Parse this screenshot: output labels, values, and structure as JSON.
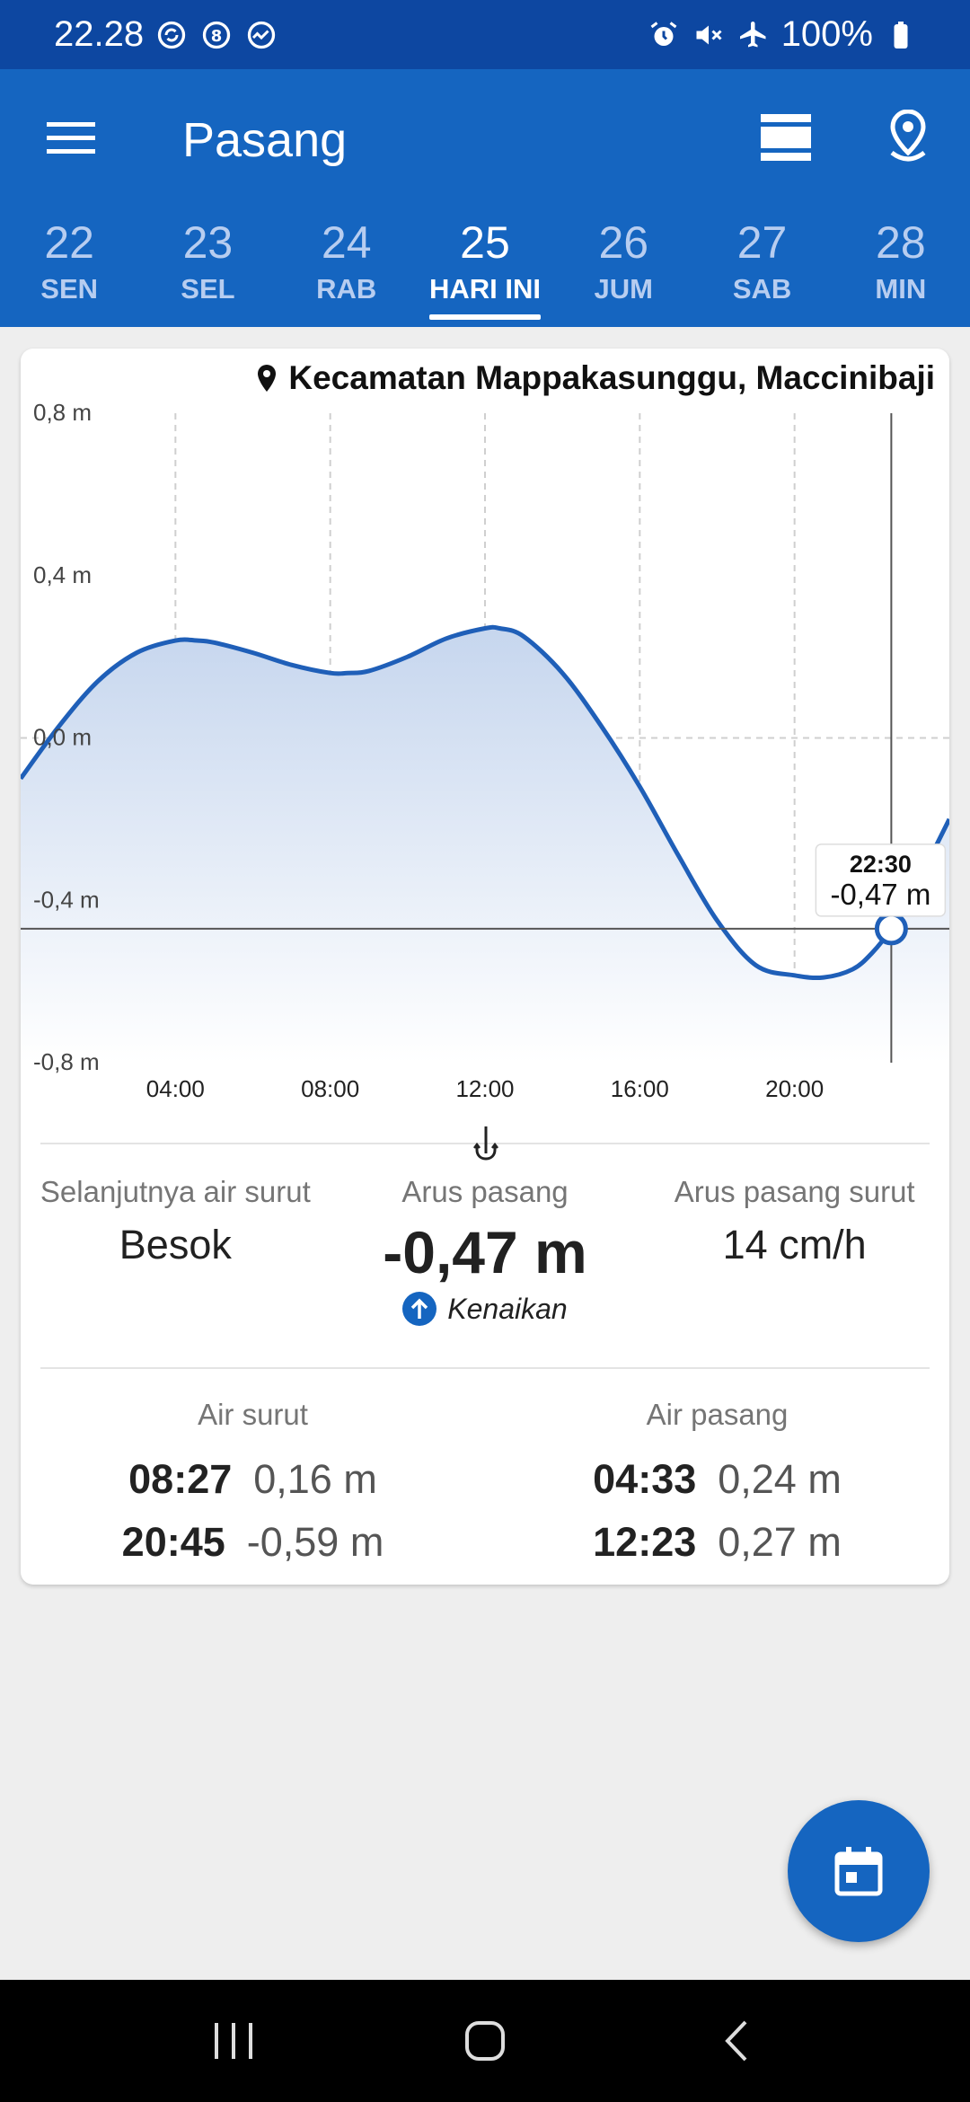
{
  "status_bar": {
    "time": "22.28",
    "battery": "100%",
    "left_icons": [
      "sync-icon",
      "app-8-icon",
      "activity-icon"
    ],
    "right_icons": [
      "alarm-icon",
      "mute-icon",
      "airplane-icon",
      "battery-icon"
    ]
  },
  "app_bar": {
    "title": "Pasang",
    "menu_icon": "menu-icon",
    "view_icon": "view-list-icon",
    "location_icon": "location-pin-icon"
  },
  "days": [
    {
      "num": "22",
      "dow": "SEN",
      "active": false
    },
    {
      "num": "23",
      "dow": "SEL",
      "active": false
    },
    {
      "num": "24",
      "dow": "RAB",
      "active": false
    },
    {
      "num": "25",
      "dow": "HARI INI",
      "active": true
    },
    {
      "num": "26",
      "dow": "JUM",
      "active": false
    },
    {
      "num": "27",
      "dow": "SAB",
      "active": false
    },
    {
      "num": "28",
      "dow": "MIN",
      "active": false
    }
  ],
  "location": "Kecamatan Mappakasunggu, Maccinibaji",
  "chart_data": {
    "type": "area",
    "x_unit": "hours",
    "xlim": [
      0,
      24
    ],
    "ylim": [
      -0.8,
      0.8
    ],
    "y_ticks": [
      0.8,
      0.4,
      0.0,
      -0.4,
      -0.8
    ],
    "y_tick_labels": [
      "0,8 m",
      "0,4 m",
      "0,0 m",
      "-0,4 m",
      "-0,8 m"
    ],
    "x_ticks": [
      4,
      8,
      12,
      16,
      20
    ],
    "x_tick_labels": [
      "04:00",
      "08:00",
      "12:00",
      "16:00",
      "20:00"
    ],
    "grid": true,
    "series": [
      {
        "x": [
          0,
          1,
          2,
          3,
          4,
          4.55,
          5,
          6,
          7,
          8,
          8.45,
          9,
          10,
          11,
          12,
          12.38,
          13,
          14,
          15,
          16,
          17,
          18,
          19,
          20,
          20.75,
          21.5,
          22,
          22.5,
          23,
          24
        ],
        "y": [
          -0.1,
          0.03,
          0.14,
          0.21,
          0.24,
          0.24,
          0.235,
          0.21,
          0.18,
          0.16,
          0.16,
          0.165,
          0.2,
          0.245,
          0.27,
          0.27,
          0.25,
          0.16,
          0.03,
          -0.12,
          -0.29,
          -0.45,
          -0.56,
          -0.585,
          -0.59,
          -0.57,
          -0.53,
          -0.47,
          -0.39,
          -0.2
        ]
      }
    ],
    "cursor": {
      "x": 22.5,
      "time": "22:30",
      "value": "-0,47 m"
    }
  },
  "stats": {
    "next_label": "Selanjutnya air surut",
    "next_value": "Besok",
    "tide_label": "Arus pasang",
    "tide_value": "-0,47 m",
    "trend_label": "Kenaikan",
    "current_label": "Arus pasang surut",
    "current_value": "14 cm/h"
  },
  "low_tides": {
    "title": "Air surut",
    "rows": [
      {
        "time": "08:27",
        "value": "0,16 m"
      },
      {
        "time": "20:45",
        "value": "-0,59 m"
      }
    ]
  },
  "high_tides": {
    "title": "Air pasang",
    "rows": [
      {
        "time": "04:33",
        "value": "0,24 m"
      },
      {
        "time": "12:23",
        "value": "0,27 m"
      }
    ]
  },
  "colors": {
    "primary": "#1565c0",
    "primary_dark": "#0d47a1",
    "curve": "#1f5fb8"
  }
}
